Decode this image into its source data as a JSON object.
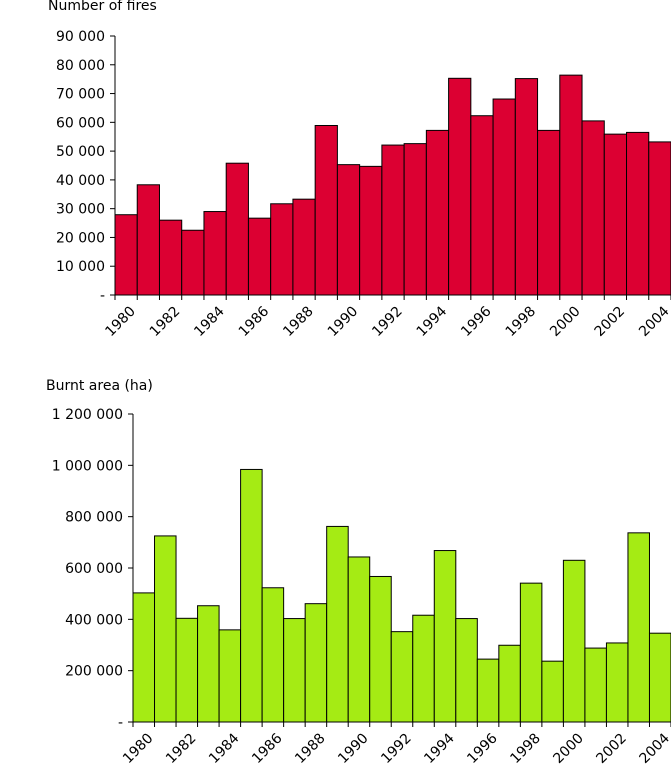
{
  "chart_data": [
    {
      "type": "bar",
      "ylabel": "Number of fires",
      "categories": [
        1980,
        1981,
        1982,
        1983,
        1984,
        1985,
        1986,
        1987,
        1988,
        1989,
        1990,
        1991,
        1992,
        1993,
        1994,
        1995,
        1996,
        1997,
        1998,
        1999,
        2000,
        2001,
        2002,
        2003,
        2004
      ],
      "x_tick_labels": [
        "1980",
        "1982",
        "1984",
        "1986",
        "1988",
        "1990",
        "1992",
        "1994",
        "1996",
        "1998",
        "2000",
        "2002",
        "2004"
      ],
      "values": [
        27900,
        38300,
        26000,
        22500,
        29000,
        45800,
        26700,
        31700,
        33300,
        58900,
        45300,
        44700,
        52100,
        52600,
        57200,
        75300,
        62300,
        68100,
        75200,
        57200,
        76400,
        60500,
        55900,
        56500,
        53200
      ],
      "ylim": [
        0,
        90000
      ],
      "y_ticks": [
        0,
        10000,
        20000,
        30000,
        40000,
        50000,
        60000,
        70000,
        80000,
        90000
      ],
      "y_tick_labels": [
        "-",
        "10 000",
        "20 000",
        "30 000",
        "40 000",
        "50 000",
        "60 000",
        "70 000",
        "80 000",
        "90 000"
      ],
      "grid": false,
      "color": "#dc0032"
    },
    {
      "type": "bar",
      "ylabel": "Burnt area (ha)",
      "categories": [
        1980,
        1981,
        1982,
        1983,
        1984,
        1985,
        1986,
        1987,
        1988,
        1989,
        1990,
        1991,
        1992,
        1993,
        1994,
        1995,
        1996,
        1997,
        1998,
        1999,
        2000,
        2001,
        2002,
        2003,
        2004
      ],
      "x_tick_labels": [
        "1980",
        "1982",
        "1984",
        "1986",
        "1988",
        "1990",
        "1992",
        "1994",
        "1996",
        "1998",
        "2000",
        "2002",
        "2004"
      ],
      "values": [
        503000,
        725000,
        404000,
        453000,
        359000,
        984000,
        523000,
        403000,
        461000,
        762000,
        643000,
        567000,
        352000,
        416000,
        668000,
        403000,
        245000,
        299000,
        541000,
        237000,
        630000,
        288000,
        308000,
        737000,
        346000
      ],
      "ylim": [
        0,
        1200000
      ],
      "y_ticks": [
        0,
        200000,
        400000,
        600000,
        800000,
        1000000,
        1200000
      ],
      "y_tick_labels": [
        "-",
        "200 000",
        "400 000",
        "600 000",
        "800 000",
        "1 000 000",
        "1 200 000"
      ],
      "grid": false,
      "color": "#a5eb14"
    }
  ]
}
